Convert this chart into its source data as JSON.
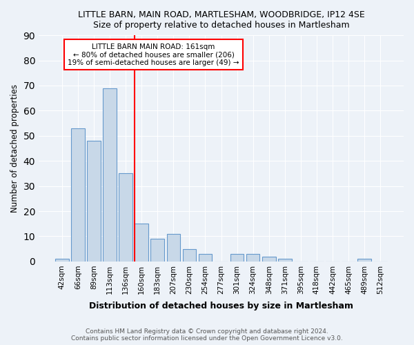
{
  "title1": "LITTLE BARN, MAIN ROAD, MARTLESHAM, WOODBRIDGE, IP12 4SE",
  "title2": "Size of property relative to detached houses in Martlesham",
  "xlabel": "Distribution of detached houses by size in Martlesham",
  "ylabel": "Number of detached properties",
  "categories": [
    "42sqm",
    "66sqm",
    "89sqm",
    "113sqm",
    "136sqm",
    "160sqm",
    "183sqm",
    "207sqm",
    "230sqm",
    "254sqm",
    "277sqm",
    "301sqm",
    "324sqm",
    "348sqm",
    "371sqm",
    "395sqm",
    "418sqm",
    "442sqm",
    "465sqm",
    "489sqm",
    "512sqm"
  ],
  "values": [
    1,
    53,
    48,
    69,
    35,
    15,
    9,
    11,
    5,
    3,
    0,
    3,
    3,
    2,
    1,
    0,
    0,
    0,
    0,
    1,
    0
  ],
  "bar_color": "#c8d8e8",
  "bar_edge_color": "#6699cc",
  "highlight_line_index": 5,
  "highlight_line_color": "red",
  "annotation_line1": "LITTLE BARN MAIN ROAD: 161sqm",
  "annotation_line2": "← 80% of detached houses are smaller (206)",
  "annotation_line3": "19% of semi-detached houses are larger (49) →",
  "annotation_box_color": "white",
  "annotation_box_edge": "red",
  "ylim": [
    0,
    90
  ],
  "yticks": [
    0,
    10,
    20,
    30,
    40,
    50,
    60,
    70,
    80,
    90
  ],
  "footer1": "Contains HM Land Registry data © Crown copyright and database right 2024.",
  "footer2": "Contains public sector information licensed under the Open Government Licence v3.0.",
  "bg_color": "#edf2f8",
  "plot_bg_color": "#edf2f8"
}
